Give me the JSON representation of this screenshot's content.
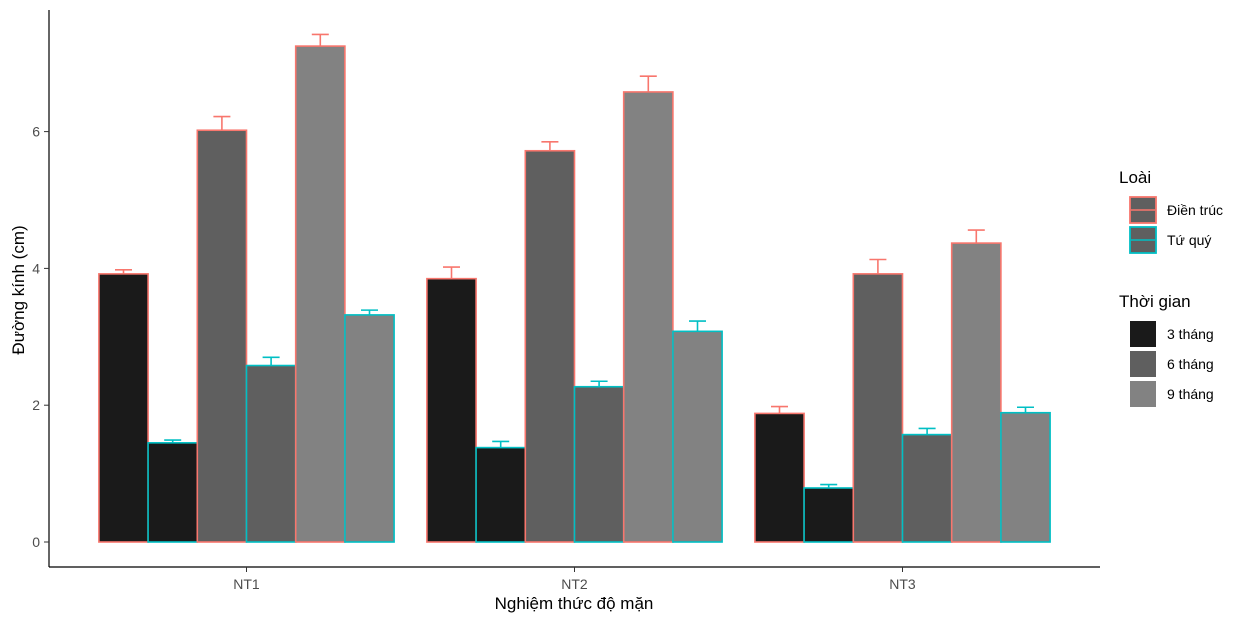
{
  "chart_data": {
    "type": "bar",
    "xlabel": "Nghiệm thức độ mặn",
    "ylabel": "Đường kính (cm)",
    "categories": [
      "NT1",
      "NT2",
      "NT3"
    ],
    "ylim": [
      0,
      7.6
    ],
    "yticks": [
      0,
      2,
      4,
      6
    ],
    "grid": false,
    "legend_position": "right",
    "loai_title": "Loài",
    "loai": [
      {
        "name": "Điền trúc",
        "color": "#F8766D"
      },
      {
        "name": "Tứ quý",
        "color": "#00BFC4"
      }
    ],
    "time_title": "Thời gian",
    "times": [
      {
        "name": "3 tháng",
        "color": "#1a1a1a"
      },
      {
        "name": "6 tháng",
        "color": "#5f5f5f"
      },
      {
        "name": "9 tháng",
        "color": "#828282"
      }
    ],
    "bars": [
      {
        "category": "NT1",
        "time": "3 tháng",
        "loai": "Điền trúc",
        "value": 3.92,
        "err": 0.06
      },
      {
        "category": "NT1",
        "time": "3 tháng",
        "loai": "Tứ quý",
        "value": 1.45,
        "err": 0.04
      },
      {
        "category": "NT1",
        "time": "6 tháng",
        "loai": "Điền trúc",
        "value": 6.02,
        "err": 0.2
      },
      {
        "category": "NT1",
        "time": "6 tháng",
        "loai": "Tứ quý",
        "value": 2.58,
        "err": 0.12
      },
      {
        "category": "NT1",
        "time": "9 tháng",
        "loai": "Điền trúc",
        "value": 7.25,
        "err": 0.17
      },
      {
        "category": "NT1",
        "time": "9 tháng",
        "loai": "Tứ quý",
        "value": 3.32,
        "err": 0.07
      },
      {
        "category": "NT2",
        "time": "3 tháng",
        "loai": "Điền trúc",
        "value": 3.85,
        "err": 0.17
      },
      {
        "category": "NT2",
        "time": "3 tháng",
        "loai": "Tứ quý",
        "value": 1.38,
        "err": 0.09
      },
      {
        "category": "NT2",
        "time": "6 tháng",
        "loai": "Điền trúc",
        "value": 5.72,
        "err": 0.13
      },
      {
        "category": "NT2",
        "time": "6 tháng",
        "loai": "Tứ quý",
        "value": 2.27,
        "err": 0.08
      },
      {
        "category": "NT2",
        "time": "9 tháng",
        "loai": "Điền trúc",
        "value": 6.58,
        "err": 0.23
      },
      {
        "category": "NT2",
        "time": "9 tháng",
        "loai": "Tứ quý",
        "value": 3.08,
        "err": 0.15
      },
      {
        "category": "NT3",
        "time": "3 tháng",
        "loai": "Điền trúc",
        "value": 1.88,
        "err": 0.1
      },
      {
        "category": "NT3",
        "time": "3 tháng",
        "loai": "Tứ quý",
        "value": 0.79,
        "err": 0.05
      },
      {
        "category": "NT3",
        "time": "6 tháng",
        "loai": "Điền trúc",
        "value": 3.92,
        "err": 0.21
      },
      {
        "category": "NT3",
        "time": "6 tháng",
        "loai": "Tứ quý",
        "value": 1.57,
        "err": 0.09
      },
      {
        "category": "NT3",
        "time": "9 tháng",
        "loai": "Điền trúc",
        "value": 4.37,
        "err": 0.19
      },
      {
        "category": "NT3",
        "time": "9 tháng",
        "loai": "Tứ quý",
        "value": 1.89,
        "err": 0.08
      }
    ]
  }
}
